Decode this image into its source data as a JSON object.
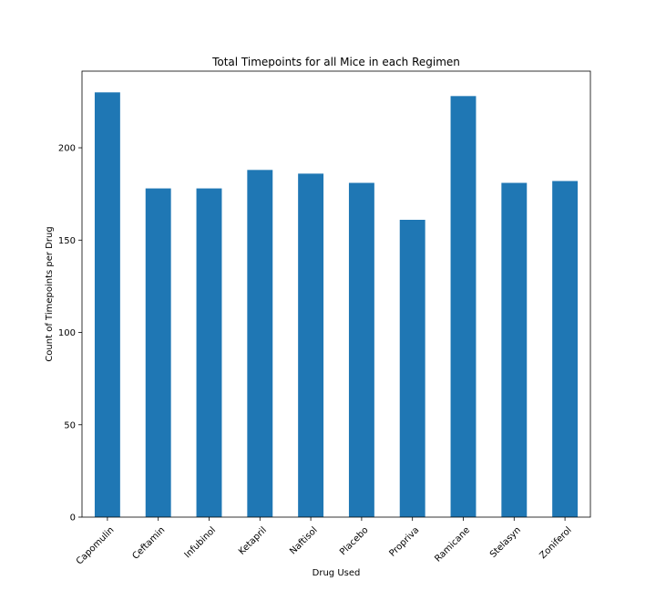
{
  "chart_data": {
    "type": "bar",
    "title": "Total Timepoints for all Mice in each Regimen",
    "xlabel": "Drug Used",
    "ylabel": "Count of Timepoints per Drug",
    "categories": [
      "Capomulin",
      "Ceftamin",
      "Infubinol",
      "Ketapril",
      "Naftisol",
      "Placebo",
      "Propriva",
      "Ramicane",
      "Stelasyn",
      "Zoniferol"
    ],
    "values": [
      230,
      178,
      178,
      188,
      186,
      181,
      161,
      228,
      181,
      182
    ],
    "ylim": [
      0,
      241.5
    ],
    "yticks": [
      "0",
      "50",
      "100",
      "150",
      "200"
    ],
    "grid": false,
    "legend": "none",
    "bar_color": "#1f77b4"
  }
}
